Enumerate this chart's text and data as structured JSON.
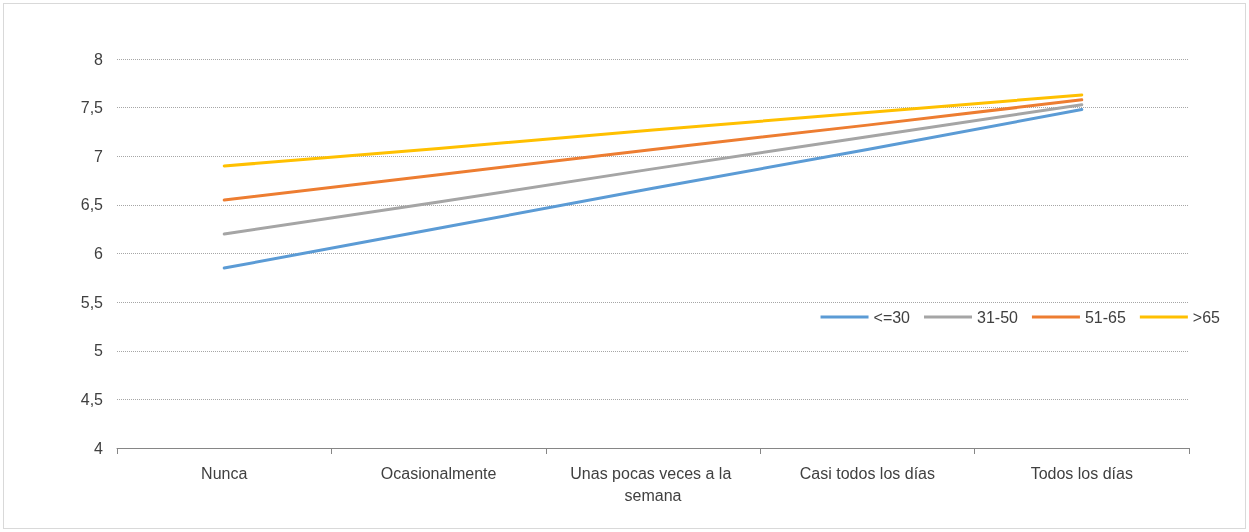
{
  "chart_data": {
    "type": "line",
    "categories": [
      "Nunca",
      "Ocasionalmente",
      "Unas pocas veces a la semana",
      "Casi todos los días",
      "Todos los días"
    ],
    "series": [
      {
        "name": "<=30",
        "color": "#5b9bd5",
        "values": [
          5.85,
          6.26,
          6.67,
          7.07,
          7.48
        ]
      },
      {
        "name": "31-50",
        "color": "#a5a5a5",
        "values": [
          6.2,
          6.53,
          6.87,
          7.2,
          7.53
        ]
      },
      {
        "name": "51-65",
        "color": "#ed7d31",
        "values": [
          6.55,
          6.81,
          7.07,
          7.32,
          7.58
        ]
      },
      {
        "name": ">65",
        "color": "#ffc000",
        "values": [
          6.9,
          7.08,
          7.27,
          7.45,
          7.63
        ]
      }
    ],
    "ylim": [
      4,
      8
    ],
    "yticks": [
      4,
      {
        "value": 4.5,
        "label": "4,5"
      },
      5,
      {
        "value": 5.5,
        "label": "5,5"
      },
      6,
      {
        "value": 6.5,
        "label": "6,5"
      },
      7,
      {
        "value": 7.5,
        "label": "7,5"
      },
      8
    ],
    "grid": "y",
    "legend": "right",
    "marker": "none",
    "line_style": "solid"
  }
}
